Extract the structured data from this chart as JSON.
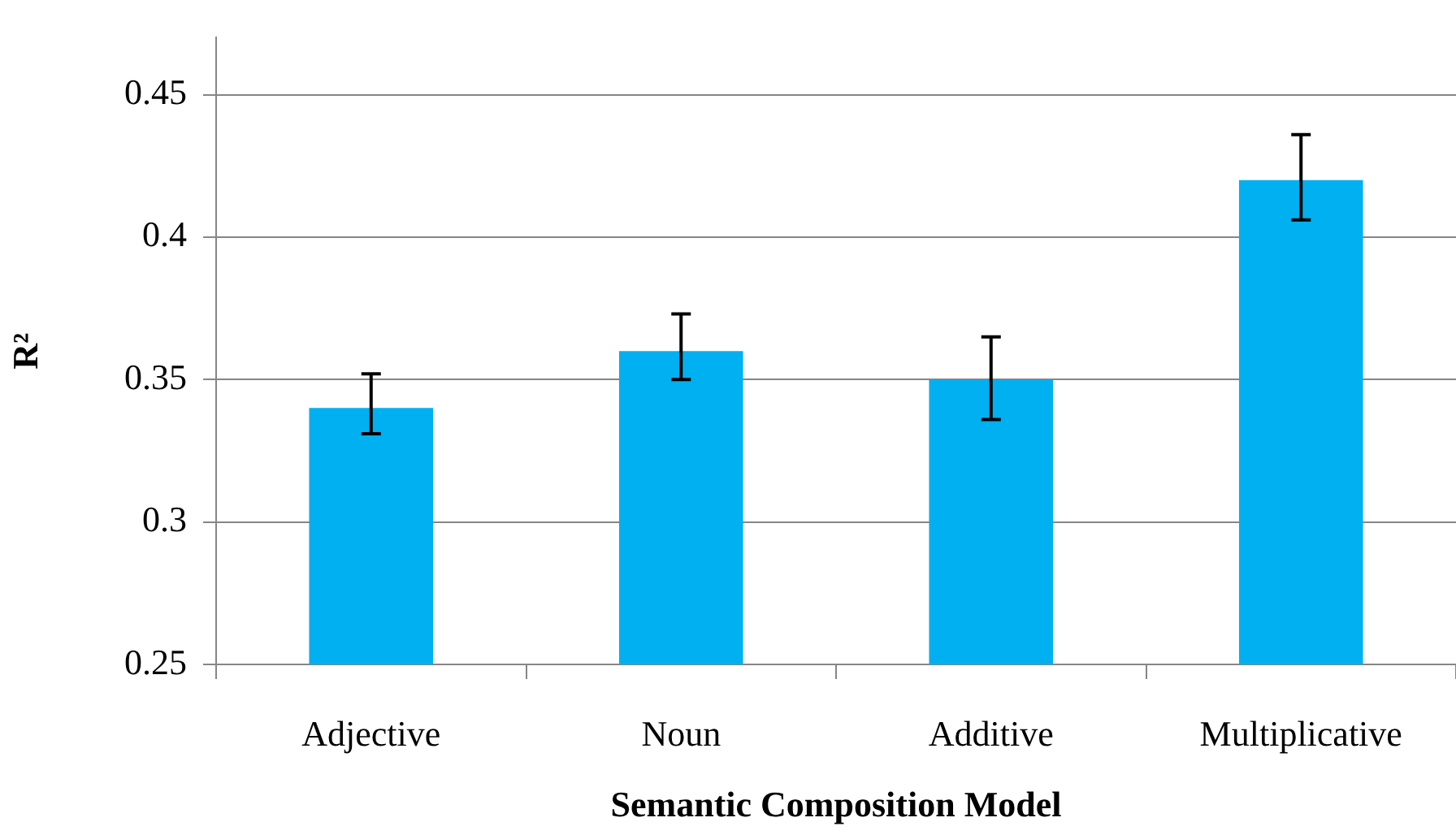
{
  "chart_data": {
    "type": "bar",
    "xlabel": "Semantic Composition Model",
    "ylabel": "R²",
    "categories": [
      "Adjective",
      "Noun",
      "Additive",
      "Multiplicative"
    ],
    "values": [
      0.34,
      0.36,
      0.35,
      0.42
    ],
    "errors": [
      [
        0.331,
        0.352
      ],
      [
        0.35,
        0.373
      ],
      [
        0.336,
        0.365
      ],
      [
        0.406,
        0.436
      ]
    ],
    "color": "#00b0f0",
    "ylim": [
      0.25,
      0.47
    ],
    "yticks": [
      0.25,
      0.3,
      0.35,
      0.4,
      0.45
    ],
    "grid": "y",
    "legend": false
  }
}
